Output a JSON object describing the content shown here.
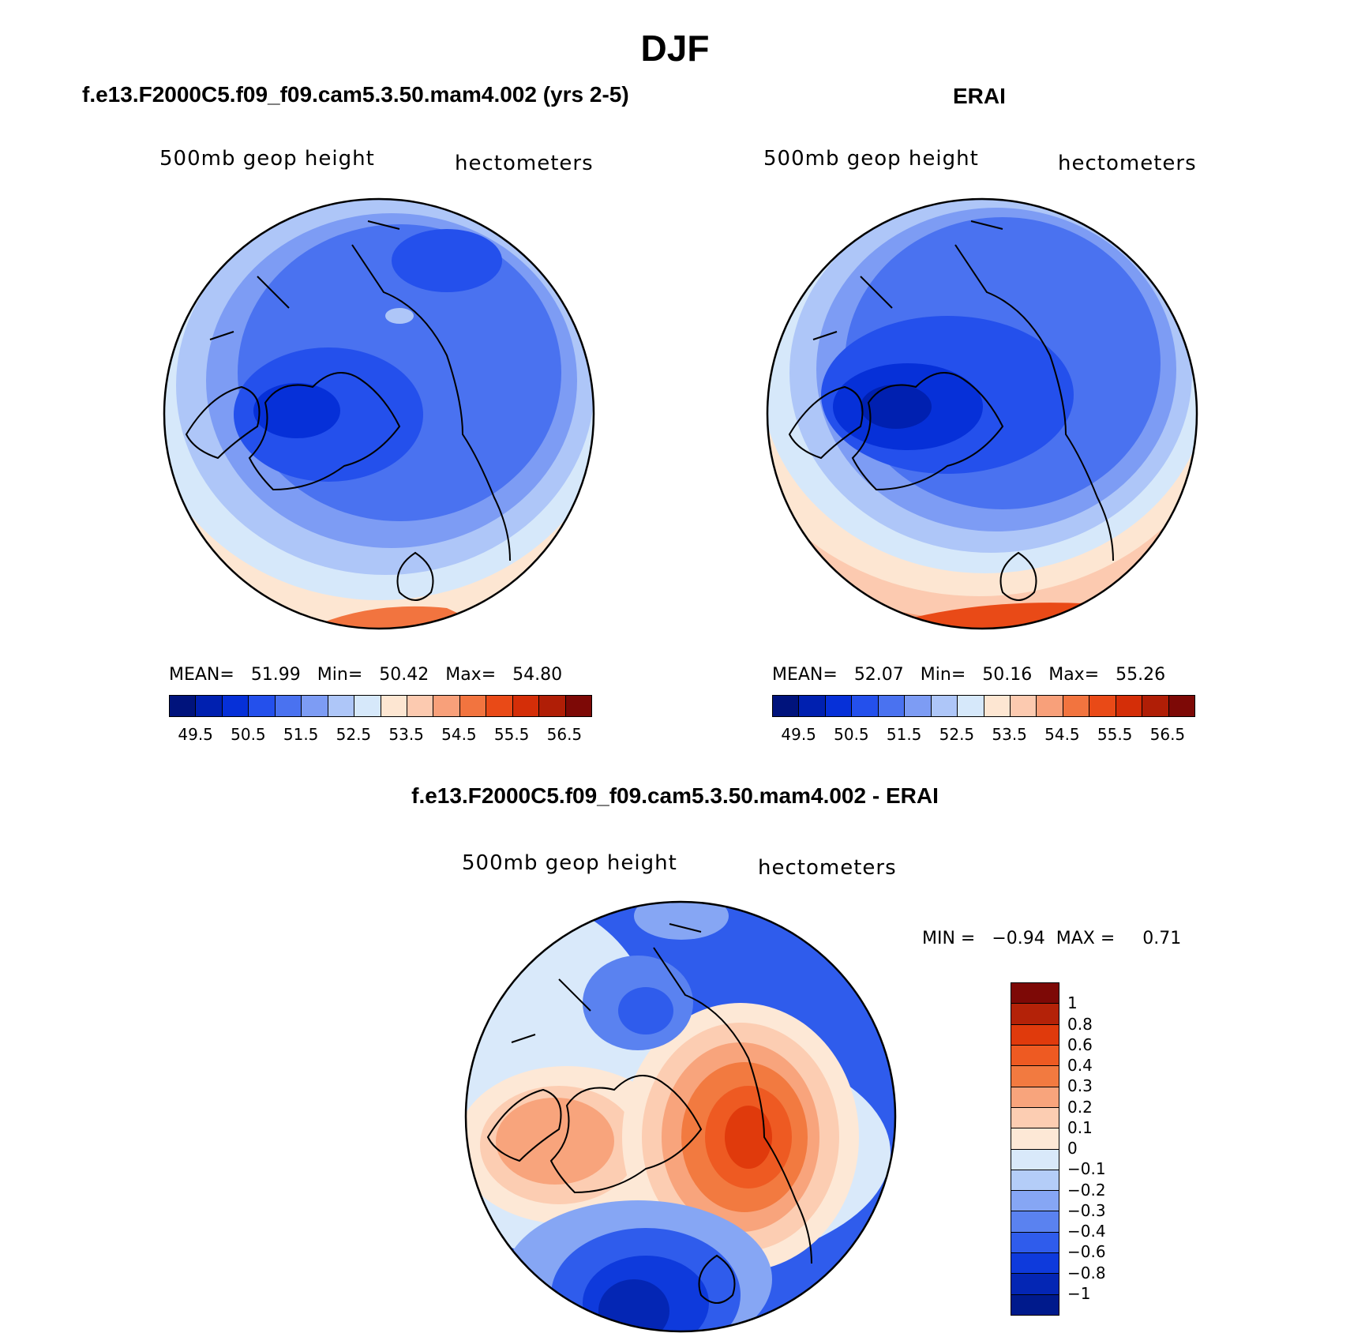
{
  "title": "DJF",
  "panels": [
    {
      "title": "f.e13.F2000C5.f09_f09.cam5.3.50.mam4.002 (yrs 2-5)",
      "left_label": "500mb geop height",
      "right_label": "hectometers",
      "stats": {
        "mean_label": "MEAN=",
        "mean": "51.99",
        "min_label": "Min=",
        "min": "50.42",
        "max_label": "Max=",
        "max": "54.80"
      }
    },
    {
      "title": "ERAI",
      "left_label": "500mb geop height",
      "right_label": "hectometers",
      "stats": {
        "mean_label": "MEAN=",
        "mean": "52.07",
        "min_label": "Min=",
        "min": "50.16",
        "max_label": "Max=",
        "max": "55.26"
      }
    },
    {
      "title": "f.e13.F2000C5.f09_f09.cam5.3.50.mam4.002 - ERAI",
      "left_label": "500mb geop height",
      "right_label": "hectometers",
      "minmax": {
        "min_label": "MIN =",
        "min": "−0.94",
        "max_label": "MAX =",
        "max": "0.71"
      }
    }
  ],
  "colorbar_abs": {
    "colors": [
      "#00137c",
      "#0020b0",
      "#0630d8",
      "#2450ec",
      "#4a72f0",
      "#7d9cf4",
      "#aec6f8",
      "#d6e8fa",
      "#fde6d2",
      "#fccab0",
      "#f8a07a",
      "#f2743f",
      "#e94a17",
      "#d42e08",
      "#b01e06",
      "#7d0906"
    ],
    "labels": [
      "49.5",
      "50.5",
      "51.5",
      "52.5",
      "53.5",
      "54.5",
      "55.5",
      "56.5"
    ]
  },
  "colorbar_diff": {
    "colors_top_to_bottom": [
      "#7d0906",
      "#b42208",
      "#e03a0c",
      "#ee5a22",
      "#f27a40",
      "#f8a47c",
      "#fccdb2",
      "#fde8d6",
      "#d9e9fa",
      "#b4cdf8",
      "#86a6f4",
      "#5a82f0",
      "#2f5cec",
      "#0e3adc",
      "#0426b4",
      "#001a8c"
    ],
    "labels": [
      "1",
      "0.8",
      "0.6",
      "0.4",
      "0.3",
      "0.2",
      "0.1",
      "0",
      "−0.1",
      "−0.2",
      "−0.3",
      "−0.4",
      "−0.6",
      "−0.8",
      "−1"
    ]
  }
}
